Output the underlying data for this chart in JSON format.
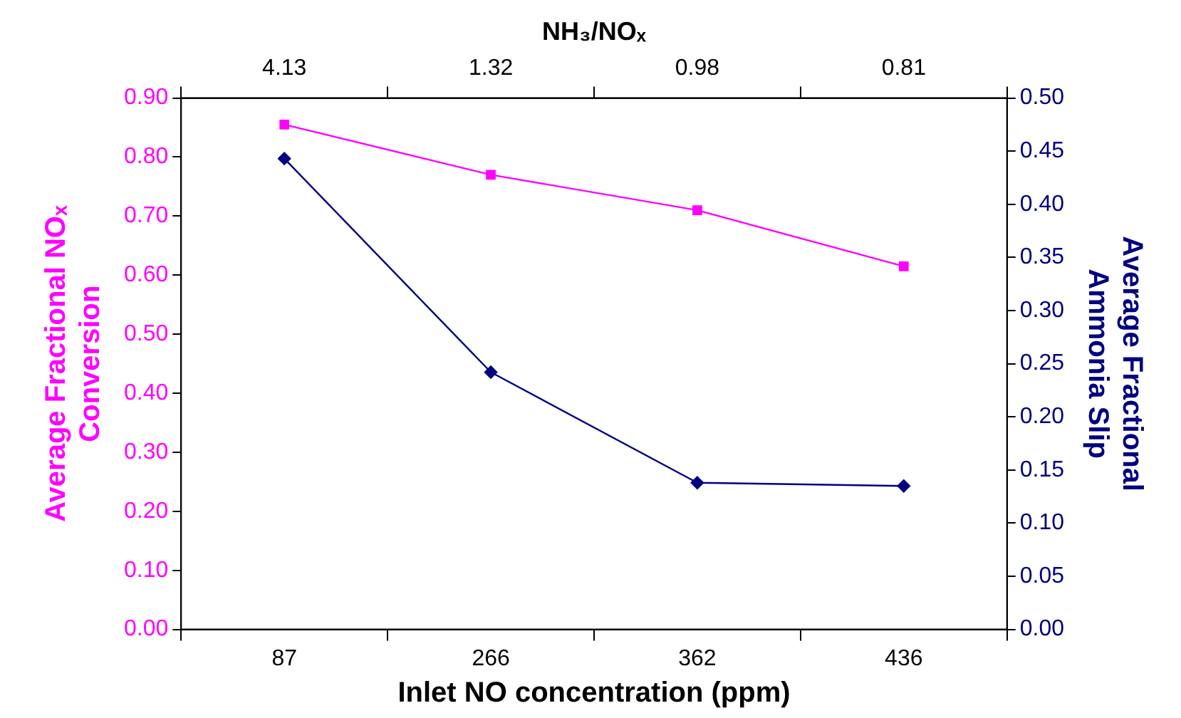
{
  "chart_data": {
    "type": "line",
    "xlabel": "Inlet NO concentration (ppm)",
    "x2label": "NH₃/NOₓ",
    "ylabel": "Average Fractional NOₓ\nConversion",
    "y2label": "Average Fractional\nAmmonia Slip",
    "categories": [
      "87",
      "266",
      "362",
      "436"
    ],
    "annotations": [
      "4.13",
      "1.32",
      "0.98",
      "0.81"
    ],
    "ylim": [
      0,
      0.9
    ],
    "yticks": [
      {
        "value": 0,
        "label": "0.00"
      },
      {
        "value": 0.1,
        "label": "0.10"
      },
      {
        "value": 0.2,
        "label": "0.20"
      },
      {
        "value": 0.3,
        "label": "0.30"
      },
      {
        "value": 0.4,
        "label": "0.40"
      },
      {
        "value": 0.5,
        "label": "0.50"
      },
      {
        "value": 0.6,
        "label": "0.60"
      },
      {
        "value": 0.7,
        "label": "0.70"
      },
      {
        "value": 0.8,
        "label": "0.80"
      },
      {
        "value": 0.9,
        "label": "0.90"
      }
    ],
    "y2lim": [
      0,
      0.5
    ],
    "y2ticks": [
      {
        "value": 0,
        "label": "0.00"
      },
      {
        "value": 0.05,
        "label": "0.05"
      },
      {
        "value": 0.1,
        "label": "0.10"
      },
      {
        "value": 0.15,
        "label": "0.15"
      },
      {
        "value": 0.2,
        "label": "0.20"
      },
      {
        "value": 0.25,
        "label": "0.25"
      },
      {
        "value": 0.3,
        "label": "0.30"
      },
      {
        "value": 0.35,
        "label": "0.35"
      },
      {
        "value": 0.4,
        "label": "0.40"
      },
      {
        "value": 0.45,
        "label": "0.45"
      },
      {
        "value": 0.5,
        "label": "0.50"
      }
    ],
    "grid": false,
    "legend": false,
    "series": [
      {
        "color": "#ff00ff",
        "marker": "square",
        "values": [
          0.855,
          0.77,
          0.71,
          0.615
        ]
      },
      {
        "color": "#000080",
        "marker": "diamond",
        "axis": "y2",
        "values": [
          0.443,
          0.242,
          0.138,
          0.135
        ]
      }
    ]
  }
}
